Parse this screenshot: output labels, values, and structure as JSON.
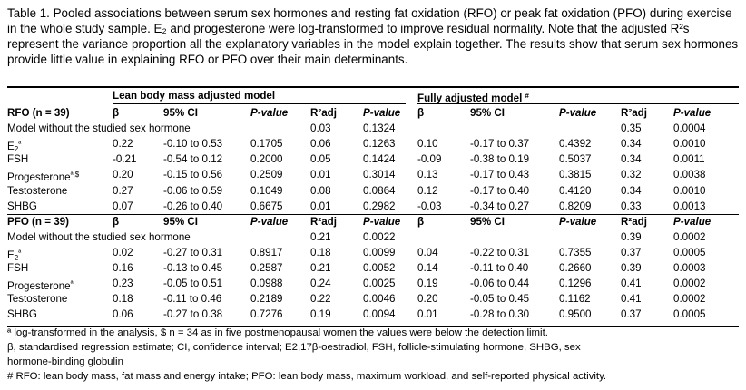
{
  "caption": "Table 1. Pooled associations between serum sex hormones and resting fat oxidation (RFO) or peak fat oxidation (PFO) during exercise in the whole study sample. E₂ and progesterone were log-transformed to improve residual normality. Note that the adjusted R²s represent the variance proportion all the explanatory variables in the model explain together. The results show that serum sex hormones provide little value in explaining RFO or PFO over their main determinants.",
  "table": {
    "group_headers": {
      "lean": "Lean body mass adjusted model",
      "full": "Fully adjusted model",
      "full_mark": "#"
    },
    "columns": {
      "beta": "β",
      "ci": "95% CI",
      "pvalue": "P-value",
      "r2adj": "R²adj"
    },
    "sections": [
      {
        "label": "RFO (n = 39)",
        "rows": [
          {
            "label": "Model without the studied sex hormone",
            "mark": "",
            "lean": [
              "",
              "",
              "",
              "0.03",
              "0.1324"
            ],
            "full": [
              "",
              "",
              "",
              "0.35",
              "0.0004"
            ]
          },
          {
            "label": "E₂",
            "mark": "ª",
            "lean": [
              "0.22",
              "-0.10 to 0.53",
              "0.1705",
              "0.06",
              "0.1263"
            ],
            "full": [
              "0.10",
              "-0.17 to 0.37",
              "0.4392",
              "0.34",
              "0.0010"
            ]
          },
          {
            "label": "FSH",
            "mark": "",
            "lean": [
              "-0.21",
              "-0.54 to 0.12",
              "0.2000",
              "0.05",
              "0.1424"
            ],
            "full": [
              "-0.09",
              "-0.38 to 0.19",
              "0.5037",
              "0.34",
              "0.0011"
            ]
          },
          {
            "label": "Progesterone",
            "mark": "ª,$",
            "lean": [
              "0.20",
              "-0.15 to 0.56",
              "0.2509",
              "0.01",
              "0.3014"
            ],
            "full": [
              "0.13",
              "-0.17 to 0.43",
              "0.3815",
              "0.32",
              "0.0038"
            ]
          },
          {
            "label": "Testosterone",
            "mark": "",
            "lean": [
              "0.27",
              "-0.06 to 0.59",
              "0.1049",
              "0.08",
              "0.0864"
            ],
            "full": [
              "0.12",
              "-0.17 to 0.40",
              "0.4120",
              "0.34",
              "0.0010"
            ]
          },
          {
            "label": "SHBG",
            "mark": "",
            "lean": [
              "0.07",
              "-0.26 to 0.40",
              "0.6675",
              "0.01",
              "0.2982"
            ],
            "full": [
              "-0.03",
              "-0.34 to 0.27",
              "0.8209",
              "0.33",
              "0.0013"
            ]
          }
        ]
      },
      {
        "label": "PFO (n = 39)",
        "rows": [
          {
            "label": "Model without the studied sex hormone",
            "mark": "",
            "lean": [
              "",
              "",
              "",
              "0.21",
              "0.0022"
            ],
            "full": [
              "",
              "",
              "",
              "0.39",
              "0.0002"
            ]
          },
          {
            "label": "E₂",
            "mark": "ª",
            "lean": [
              "0.02",
              "-0.27 to 0.31",
              "0.8917",
              "0.18",
              "0.0099"
            ],
            "full": [
              "0.04",
              "-0.22 to 0.31",
              "0.7355",
              "0.37",
              "0.0005"
            ]
          },
          {
            "label": "FSH",
            "mark": "",
            "lean": [
              "0.16",
              "-0.13 to 0.45",
              "0.2587",
              "0.21",
              "0.0052"
            ],
            "full": [
              "0.14",
              "-0.11 to 0.40",
              "0.2660",
              "0.39",
              "0.0003"
            ]
          },
          {
            "label": "Progesterone",
            "mark": "ª",
            "lean": [
              "0.23",
              "-0.05 to 0.51",
              "0.0988",
              "0.24",
              "0.0025"
            ],
            "full": [
              "0.19",
              "-0.06 to 0.44",
              "0.1296",
              "0.41",
              "0.0002"
            ]
          },
          {
            "label": "Testosterone",
            "mark": "",
            "lean": [
              "0.18",
              "-0.11 to 0.46",
              "0.2189",
              "0.22",
              "0.0046"
            ],
            "full": [
              "0.20",
              "-0.05 to 0.45",
              "0.1162",
              "0.41",
              "0.0002"
            ]
          },
          {
            "label": "SHBG",
            "mark": "",
            "lean": [
              "0.06",
              "-0.27 to 0.38",
              "0.7276",
              "0.19",
              "0.0094"
            ],
            "full": [
              "0.01",
              "-0.28 to 0.30",
              "0.9500",
              "0.37",
              "0.0005"
            ]
          }
        ]
      }
    ]
  },
  "footnotes": [
    "ª log-transformed in the analysis, $ n = 34 as in five postmenopausal women the values were below the detection limit.",
    "β, standardised regression estimate; CI, confidence interval; E2,17β-oestradiol, FSH, follicle-stimulating hormone, SHBG, sex",
    "hormone-binding globulin",
    "# RFO: lean body mass, fat mass and energy intake; PFO: lean body mass, maximum workload, and self-reported physical activity."
  ]
}
